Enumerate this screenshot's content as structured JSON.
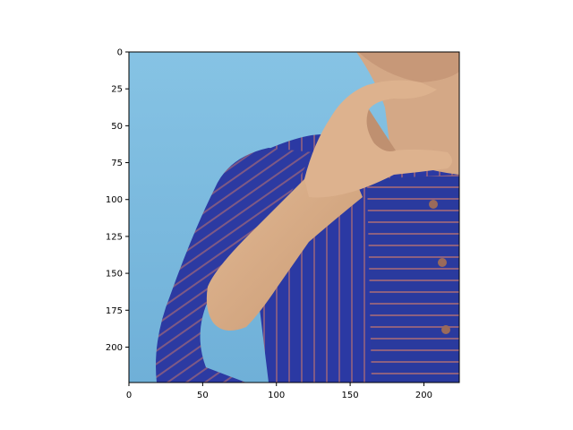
{
  "chart_data": {
    "type": "image",
    "title": "",
    "xlabel": "",
    "ylabel": "",
    "xlim": [
      0,
      224
    ],
    "ylim": [
      224,
      0
    ],
    "xticks": [
      0,
      50,
      100,
      150,
      200
    ],
    "yticks": [
      0,
      25,
      50,
      75,
      100,
      125,
      150,
      175,
      200
    ],
    "grid": false,
    "image_content": [
      "light-blue-background",
      "blue-striped-kurta",
      "raised-hand-near-chin",
      "neck-and-chin"
    ]
  },
  "colors": {
    "background": "#7fbde0",
    "garment": "#2a3aa0",
    "garment_stripe": "#8a5a7a",
    "skin": "#d7ab86",
    "skin_shadow": "#b98a6a"
  }
}
